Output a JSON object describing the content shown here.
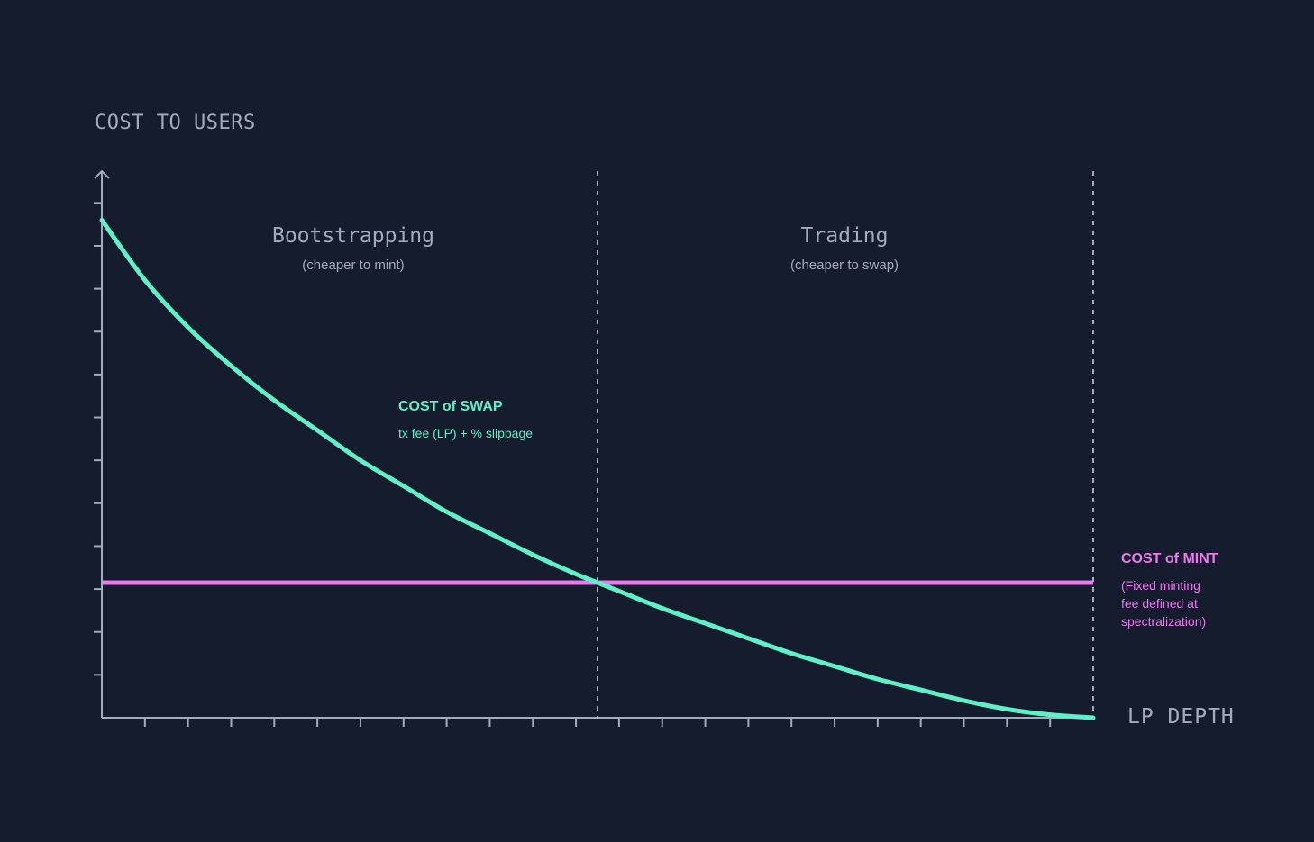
{
  "chart_data": {
    "type": "line",
    "title": "",
    "ylabel": "COST TO USERS",
    "xlabel": "LP DEPTH",
    "xlim": [
      0,
      23
    ],
    "ylim": [
      0,
      12.7
    ],
    "x_ticks": 23,
    "y_ticks": 12,
    "regions": [
      {
        "name": "Bootstrapping",
        "subtitle": "(cheaper to mint)",
        "x_range": [
          0,
          11.5
        ]
      },
      {
        "name": "Trading",
        "subtitle": "(cheaper to swap)",
        "x_range": [
          11.5,
          23
        ]
      }
    ],
    "divider_x": [
      11.5,
      23
    ],
    "series": [
      {
        "name": "COST of SWAP",
        "description": "tx fee (LP) + % slippage",
        "color": "#5ff0c8",
        "x": [
          0,
          1,
          2,
          3,
          4,
          5,
          6,
          7,
          8,
          9,
          10,
          11,
          11.5,
          12,
          13,
          14,
          15,
          16,
          17,
          18,
          19,
          20,
          21,
          22,
          23
        ],
        "y": [
          11.6,
          10.2,
          9.1,
          8.2,
          7.4,
          6.7,
          6.0,
          5.4,
          4.8,
          4.3,
          3.8,
          3.35,
          3.15,
          2.95,
          2.55,
          2.2,
          1.85,
          1.5,
          1.2,
          0.9,
          0.65,
          0.4,
          0.2,
          0.07,
          0.0
        ]
      },
      {
        "name": "COST of MINT",
        "description_lines": [
          "(Fixed minting",
          "fee defined at",
          "spectralization)"
        ],
        "color": "#ee78ee",
        "x": [
          0,
          23
        ],
        "y": [
          3.15,
          3.15
        ]
      }
    ]
  },
  "colors": {
    "background": "#141c2e",
    "axis": "#a3abbd",
    "divider": "#a3abbd",
    "swap": "#5ff0c8",
    "mint": "#ee78ee"
  }
}
